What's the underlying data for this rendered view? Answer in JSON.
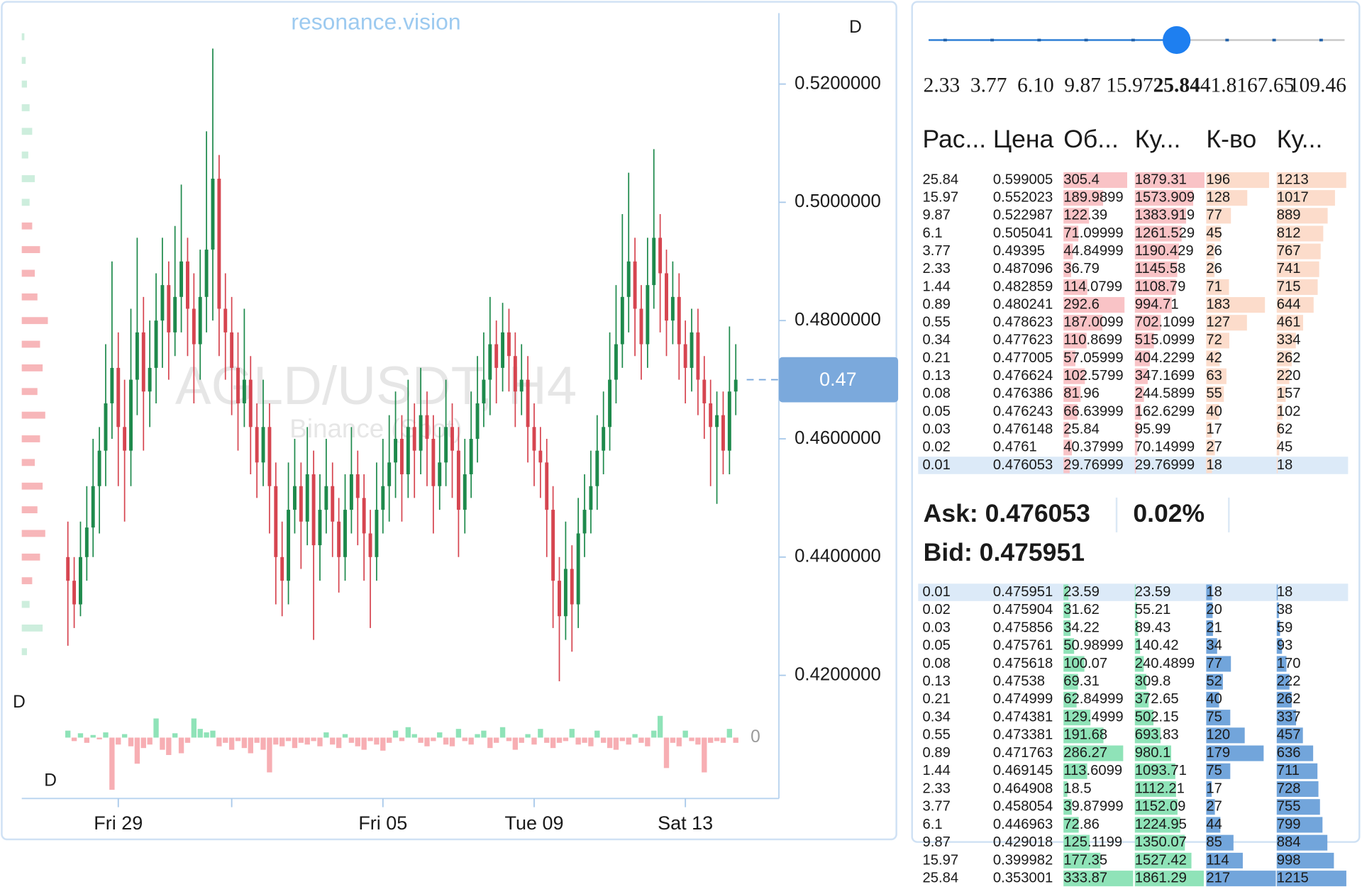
{
  "chart_data": {
    "type": "candlestick",
    "title": "resonance.vision",
    "watermark": "AGLD/USDT, H4",
    "watermark_sub": "Binance (Spot)",
    "markers": [
      "D",
      "D",
      "D"
    ],
    "ylim": [
      0.418,
      0.532
    ],
    "yticks": [
      {
        "value": 0.52,
        "label": "0.5200000"
      },
      {
        "value": 0.5,
        "label": "0.5000000"
      },
      {
        "value": 0.48,
        "label": "0.4800000"
      },
      {
        "value": 0.46,
        "label": "0.4600000"
      },
      {
        "value": 0.44,
        "label": "0.4400000"
      },
      {
        "value": 0.42,
        "label": "0.4200000"
      }
    ],
    "xticks": [
      {
        "value": 8,
        "label": "Fri 29"
      },
      {
        "value": 26,
        "label": null
      },
      {
        "value": 50,
        "label": "Fri 05"
      },
      {
        "value": 74,
        "label": "Tue 09"
      },
      {
        "value": 98,
        "label": "Sat 13"
      }
    ],
    "last_price": {
      "value": 0.47,
      "label": "0.47"
    },
    "up_color": "#1e8a4c",
    "down_color": "#d64550",
    "ohlc": [
      [
        0.44,
        0.446,
        0.425,
        0.436
      ],
      [
        0.436,
        0.44,
        0.428,
        0.432
      ],
      [
        0.432,
        0.446,
        0.43,
        0.44
      ],
      [
        0.44,
        0.452,
        0.436,
        0.445
      ],
      [
        0.445,
        0.46,
        0.44,
        0.452
      ],
      [
        0.452,
        0.462,
        0.444,
        0.458
      ],
      [
        0.458,
        0.476,
        0.452,
        0.466
      ],
      [
        0.466,
        0.49,
        0.46,
        0.472
      ],
      [
        0.472,
        0.478,
        0.452,
        0.462
      ],
      [
        0.462,
        0.47,
        0.446,
        0.458
      ],
      [
        0.458,
        0.482,
        0.452,
        0.47
      ],
      [
        0.47,
        0.494,
        0.464,
        0.478
      ],
      [
        0.478,
        0.484,
        0.458,
        0.468
      ],
      [
        0.468,
        0.48,
        0.462,
        0.472
      ],
      [
        0.472,
        0.488,
        0.466,
        0.48
      ],
      [
        0.48,
        0.494,
        0.472,
        0.486
      ],
      [
        0.486,
        0.49,
        0.47,
        0.478
      ],
      [
        0.478,
        0.496,
        0.474,
        0.484
      ],
      [
        0.484,
        0.503,
        0.478,
        0.49
      ],
      [
        0.49,
        0.494,
        0.474,
        0.482
      ],
      [
        0.482,
        0.488,
        0.466,
        0.476
      ],
      [
        0.476,
        0.492,
        0.47,
        0.484
      ],
      [
        0.484,
        0.512,
        0.478,
        0.492
      ],
      [
        0.492,
        0.526,
        0.48,
        0.504
      ],
      [
        0.504,
        0.508,
        0.474,
        0.482
      ],
      [
        0.482,
        0.488,
        0.47,
        0.478
      ],
      [
        0.478,
        0.484,
        0.464,
        0.472
      ],
      [
        0.472,
        0.478,
        0.458,
        0.466
      ],
      [
        0.466,
        0.482,
        0.462,
        0.47
      ],
      [
        0.47,
        0.474,
        0.454,
        0.462
      ],
      [
        0.462,
        0.466,
        0.45,
        0.456
      ],
      [
        0.456,
        0.47,
        0.452,
        0.462
      ],
      [
        0.462,
        0.466,
        0.444,
        0.452
      ],
      [
        0.452,
        0.456,
        0.432,
        0.44
      ],
      [
        0.44,
        0.446,
        0.43,
        0.436
      ],
      [
        0.436,
        0.456,
        0.432,
        0.448
      ],
      [
        0.448,
        0.46,
        0.444,
        0.452
      ],
      [
        0.452,
        0.456,
        0.438,
        0.446
      ],
      [
        0.446,
        0.462,
        0.442,
        0.454
      ],
      [
        0.454,
        0.458,
        0.426,
        0.442
      ],
      [
        0.442,
        0.454,
        0.436,
        0.448
      ],
      [
        0.448,
        0.46,
        0.444,
        0.452
      ],
      [
        0.452,
        0.456,
        0.44,
        0.446
      ],
      [
        0.446,
        0.45,
        0.434,
        0.44
      ],
      [
        0.44,
        0.454,
        0.436,
        0.448
      ],
      [
        0.448,
        0.462,
        0.444,
        0.454
      ],
      [
        0.454,
        0.458,
        0.442,
        0.45
      ],
      [
        0.45,
        0.454,
        0.436,
        0.444
      ],
      [
        0.444,
        0.448,
        0.428,
        0.44
      ],
      [
        0.44,
        0.456,
        0.436,
        0.448
      ],
      [
        0.448,
        0.46,
        0.444,
        0.452
      ],
      [
        0.452,
        0.464,
        0.446,
        0.456
      ],
      [
        0.456,
        0.468,
        0.45,
        0.46
      ],
      [
        0.46,
        0.464,
        0.446,
        0.454
      ],
      [
        0.454,
        0.47,
        0.45,
        0.462
      ],
      [
        0.462,
        0.466,
        0.45,
        0.458
      ],
      [
        0.458,
        0.472,
        0.454,
        0.464
      ],
      [
        0.464,
        0.468,
        0.452,
        0.46
      ],
      [
        0.46,
        0.464,
        0.444,
        0.452
      ],
      [
        0.452,
        0.462,
        0.448,
        0.456
      ],
      [
        0.456,
        0.47,
        0.452,
        0.462
      ],
      [
        0.462,
        0.466,
        0.45,
        0.458
      ],
      [
        0.458,
        0.462,
        0.44,
        0.448
      ],
      [
        0.448,
        0.46,
        0.444,
        0.454
      ],
      [
        0.454,
        0.468,
        0.45,
        0.46
      ],
      [
        0.46,
        0.474,
        0.456,
        0.466
      ],
      [
        0.466,
        0.478,
        0.462,
        0.47
      ],
      [
        0.47,
        0.484,
        0.464,
        0.476
      ],
      [
        0.476,
        0.48,
        0.466,
        0.472
      ],
      [
        0.472,
        0.483,
        0.468,
        0.478
      ],
      [
        0.478,
        0.482,
        0.468,
        0.474
      ],
      [
        0.474,
        0.478,
        0.462,
        0.468
      ],
      [
        0.468,
        0.476,
        0.464,
        0.47
      ],
      [
        0.47,
        0.474,
        0.456,
        0.462
      ],
      [
        0.462,
        0.466,
        0.452,
        0.458
      ],
      [
        0.458,
        0.462,
        0.45,
        0.456
      ],
      [
        0.456,
        0.46,
        0.44,
        0.448
      ],
      [
        0.448,
        0.452,
        0.428,
        0.436
      ],
      [
        0.436,
        0.44,
        0.419,
        0.43
      ],
      [
        0.43,
        0.446,
        0.426,
        0.438
      ],
      [
        0.438,
        0.442,
        0.424,
        0.432
      ],
      [
        0.432,
        0.45,
        0.428,
        0.444
      ],
      [
        0.444,
        0.454,
        0.44,
        0.448
      ],
      [
        0.448,
        0.458,
        0.444,
        0.452
      ],
      [
        0.452,
        0.464,
        0.448,
        0.458
      ],
      [
        0.458,
        0.468,
        0.454,
        0.462
      ],
      [
        0.462,
        0.478,
        0.458,
        0.47
      ],
      [
        0.47,
        0.486,
        0.466,
        0.476
      ],
      [
        0.476,
        0.498,
        0.472,
        0.484
      ],
      [
        0.484,
        0.505,
        0.478,
        0.49
      ],
      [
        0.49,
        0.494,
        0.474,
        0.482
      ],
      [
        0.482,
        0.486,
        0.47,
        0.476
      ],
      [
        0.476,
        0.494,
        0.472,
        0.486
      ],
      [
        0.486,
        0.509,
        0.482,
        0.494
      ],
      [
        0.494,
        0.498,
        0.478,
        0.488
      ],
      [
        0.488,
        0.492,
        0.474,
        0.48
      ],
      [
        0.48,
        0.49,
        0.476,
        0.484
      ],
      [
        0.484,
        0.488,
        0.47,
        0.476
      ],
      [
        0.476,
        0.48,
        0.466,
        0.472
      ],
      [
        0.472,
        0.482,
        0.468,
        0.478
      ],
      [
        0.478,
        0.482,
        0.464,
        0.47
      ],
      [
        0.47,
        0.474,
        0.46,
        0.466
      ],
      [
        0.466,
        0.47,
        0.452,
        0.462
      ],
      [
        0.462,
        0.468,
        0.449,
        0.464
      ],
      [
        0.464,
        0.468,
        0.454,
        0.458
      ],
      [
        0.458,
        0.479,
        0.454,
        0.468
      ],
      [
        0.468,
        0.476,
        0.464,
        0.47
      ]
    ],
    "delta": [
      8,
      -4,
      5,
      -6,
      3,
      -2,
      6,
      -60,
      -8,
      4,
      -10,
      -30,
      -12,
      -8,
      22,
      -14,
      -20,
      5,
      -18,
      -6,
      22,
      10,
      6,
      8,
      -10,
      -6,
      -14,
      -4,
      -12,
      -18,
      -6,
      -14,
      -40,
      -8,
      -10,
      -4,
      -12,
      -6,
      -8,
      -4,
      -10,
      6,
      -8,
      -12,
      4,
      -6,
      -10,
      -14,
      -4,
      -8,
      -15,
      -6,
      8,
      -4,
      12,
      4,
      -6,
      -10,
      -4,
      6,
      -8,
      -10,
      10,
      -4,
      -8,
      4,
      8,
      -12,
      -6,
      12,
      -4,
      -14,
      -6,
      4,
      -8,
      10,
      -6,
      -12,
      -6,
      -4,
      10,
      -8,
      -6,
      -10,
      8,
      -6,
      -12,
      -14,
      -4,
      -8,
      4,
      -6,
      -10,
      8,
      25,
      -35,
      -6,
      -10,
      8,
      -4,
      -8,
      -40,
      -6,
      -4,
      -6,
      10,
      -6
    ],
    "delta_ylim": [
      -65,
      30
    ],
    "delta_ticks": [
      0
    ],
    "delta_up_color": "#8fe3b8",
    "delta_down_color": "#f7aeb3",
    "volume_profile": {
      "prices": [
        0.424,
        0.428,
        0.432,
        0.436,
        0.44,
        0.444,
        0.448,
        0.452,
        0.456,
        0.46,
        0.464,
        0.468,
        0.472,
        0.476,
        0.48,
        0.484,
        0.488,
        0.492,
        0.496,
        0.5,
        0.504,
        0.508,
        0.512,
        0.516,
        0.52,
        0.524,
        0.528
      ],
      "values": [
        4,
        16,
        6,
        8,
        14,
        18,
        12,
        16,
        10,
        14,
        18,
        12,
        16,
        14,
        20,
        12,
        10,
        14,
        8,
        6,
        10,
        5,
        8,
        6,
        4,
        3,
        2
      ],
      "colors": [
        "#cdeedd",
        "#cdeedd",
        "#cdeedd",
        "#f7b6b9",
        "#f7b6b9",
        "#f7b6b9",
        "#f7b6b9",
        "#f7b6b9",
        "#f7b6b9",
        "#f7b6b9",
        "#f7b6b9",
        "#f7b6b9",
        "#f7b6b9",
        "#f7b6b9",
        "#f7b6b9",
        "#f7b6b9",
        "#f7b6b9",
        "#f7b6b9",
        "#f7b6b9",
        "#cdeedd",
        "#cdeedd",
        "#cdeedd",
        "#cdeedd",
        "#cdeedd",
        "#cdeedd",
        "#cdeedd",
        "#cdeedd"
      ]
    }
  },
  "slider": {
    "labels": [
      "2.33",
      "3.77",
      "6.10",
      "9.87",
      "15.97",
      "25.84",
      "41.81",
      "67.65",
      "109.46"
    ],
    "selected": 5
  },
  "order_book": {
    "headers": [
      "Рас...",
      "Цена",
      "Об...",
      "Ку...",
      "К-во",
      "Ку..."
    ],
    "ask_colors": [
      "#f9c3c6",
      "#f9c3c6",
      "#fcdccb",
      "#fcdccb"
    ],
    "bid_colors": [
      "#8fe3b8",
      "#8fe3b8",
      "#72a5db",
      "#72a5db"
    ],
    "asks": [
      [
        "25.84",
        "0.599005",
        "305.4",
        "1879.31",
        "196",
        "1213"
      ],
      [
        "15.97",
        "0.552023",
        "189.9899",
        "1573.909",
        "128",
        "1017"
      ],
      [
        "9.87",
        "0.522987",
        "122.39",
        "1383.919",
        "77",
        "889"
      ],
      [
        "6.1",
        "0.505041",
        "71.09999",
        "1261.529",
        "45",
        "812"
      ],
      [
        "3.77",
        "0.49395",
        "44.84999",
        "1190.429",
        "26",
        "767"
      ],
      [
        "2.33",
        "0.487096",
        "36.79",
        "1145.58",
        "26",
        "741"
      ],
      [
        "1.44",
        "0.482859",
        "114.0799",
        "1108.79",
        "71",
        "715"
      ],
      [
        "0.89",
        "0.480241",
        "292.6",
        "994.71",
        "183",
        "644"
      ],
      [
        "0.55",
        "0.478623",
        "187.0099",
        "702.1099",
        "127",
        "461"
      ],
      [
        "0.34",
        "0.477623",
        "110.8699",
        "515.0999",
        "72",
        "334"
      ],
      [
        "0.21",
        "0.477005",
        "57.05999",
        "404.2299",
        "42",
        "262"
      ],
      [
        "0.13",
        "0.476624",
        "102.5799",
        "347.1699",
        "63",
        "220"
      ],
      [
        "0.08",
        "0.476386",
        "81.96",
        "244.5899",
        "55",
        "157"
      ],
      [
        "0.05",
        "0.476243",
        "66.63999",
        "162.6299",
        "40",
        "102"
      ],
      [
        "0.03",
        "0.476148",
        "25.84",
        "95.99",
        "17",
        "62"
      ],
      [
        "0.02",
        "0.4761",
        "40.37999",
        "70.14999",
        "27",
        "45"
      ],
      [
        "0.01",
        "0.476053",
        "29.76999",
        "29.76999",
        "18",
        "18"
      ]
    ],
    "ask_label": "Ask: 0.476053",
    "spread": "0.02%",
    "bid_label": "Bid: 0.475951",
    "bids": [
      [
        "0.01",
        "0.475951",
        "23.59",
        "23.59",
        "18",
        "18"
      ],
      [
        "0.02",
        "0.475904",
        "31.62",
        "55.21",
        "20",
        "38"
      ],
      [
        "0.03",
        "0.475856",
        "34.22",
        "89.43",
        "21",
        "59"
      ],
      [
        "0.05",
        "0.475761",
        "50.98999",
        "140.42",
        "34",
        "93"
      ],
      [
        "0.08",
        "0.475618",
        "100.07",
        "240.4899",
        "77",
        "170"
      ],
      [
        "0.13",
        "0.47538",
        "69.31",
        "309.8",
        "52",
        "222"
      ],
      [
        "0.21",
        "0.474999",
        "62.84999",
        "372.65",
        "40",
        "262"
      ],
      [
        "0.34",
        "0.474381",
        "129.4999",
        "502.15",
        "75",
        "337"
      ],
      [
        "0.55",
        "0.473381",
        "191.68",
        "693.83",
        "120",
        "457"
      ],
      [
        "0.89",
        "0.471763",
        "286.27",
        "980.1",
        "179",
        "636"
      ],
      [
        "1.44",
        "0.469145",
        "113.6099",
        "1093.71",
        "75",
        "711"
      ],
      [
        "2.33",
        "0.464908",
        "18.5",
        "1112.21",
        "17",
        "728"
      ],
      [
        "3.77",
        "0.458054",
        "39.87999",
        "1152.09",
        "27",
        "755"
      ],
      [
        "6.1",
        "0.446963",
        "72.86",
        "1224.95",
        "44",
        "799"
      ],
      [
        "9.87",
        "0.429018",
        "125.1199",
        "1350.07",
        "85",
        "884"
      ],
      [
        "15.97",
        "0.399982",
        "177.35",
        "1527.42",
        "114",
        "998"
      ],
      [
        "25.84",
        "0.353001",
        "333.87",
        "1861.29",
        "217",
        "1215"
      ]
    ]
  }
}
